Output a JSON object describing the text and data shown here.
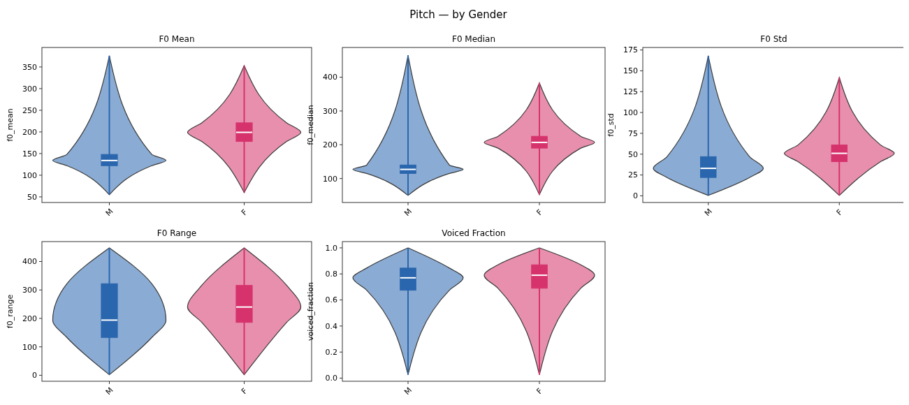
{
  "chart_data": [
    {
      "type": "box",
      "title": "F0 Mean",
      "ylabel": "f0_mean",
      "annotations": [
        "Pitch — by Gender"
      ],
      "categories": [
        "M",
        "F"
      ],
      "colors": [
        "#2a66ae",
        "#d6336c"
      ],
      "ylim": [
        37,
        395
      ],
      "yticks": [
        50,
        100,
        150,
        200,
        250,
        300,
        350
      ],
      "boxes": [
        {
          "low": 55,
          "q1": 122,
          "median": 134,
          "q3": 148,
          "high": 376
        },
        {
          "low": 60,
          "q1": 178,
          "median": 199,
          "q3": 221,
          "high": 353
        }
      ]
    },
    {
      "type": "box",
      "title": "F0 Median",
      "ylabel": "f0_median",
      "categories": [
        "M",
        "F"
      ],
      "colors": [
        "#2a66ae",
        "#d6336c"
      ],
      "ylim": [
        29,
        488
      ],
      "yticks": [
        100,
        200,
        300,
        400
      ],
      "boxes": [
        {
          "low": 50,
          "q1": 115,
          "median": 127,
          "q3": 140,
          "high": 465
        },
        {
          "low": 52,
          "q1": 190,
          "median": 207,
          "q3": 225,
          "high": 383
        }
      ]
    },
    {
      "type": "box",
      "title": "F0 Std",
      "ylabel": "f0_std",
      "categories": [
        "M",
        "F"
      ],
      "colors": [
        "#2a66ae",
        "#d6336c"
      ],
      "ylim": [
        -8,
        178
      ],
      "yticks": [
        0,
        25,
        50,
        75,
        100,
        125,
        150,
        175
      ],
      "boxes": [
        {
          "low": 0.5,
          "q1": 22,
          "median": 33,
          "q3": 47,
          "high": 168
        },
        {
          "low": 0.5,
          "q1": 41,
          "median": 51,
          "q3": 61,
          "high": 142
        }
      ]
    },
    {
      "type": "box",
      "title": "F0 Range",
      "ylabel": "f0_range",
      "categories": [
        "M",
        "F"
      ],
      "colors": [
        "#2a66ae",
        "#d6336c"
      ],
      "ylim": [
        -21,
        470
      ],
      "yticks": [
        0,
        100,
        200,
        300,
        400
      ],
      "boxes": [
        {
          "low": 2,
          "q1": 133,
          "median": 194,
          "q3": 322,
          "high": 448
        },
        {
          "low": 2,
          "q1": 186,
          "median": 240,
          "q3": 316,
          "high": 448
        }
      ]
    },
    {
      "type": "box",
      "title": "Voiced Fraction",
      "ylabel": "voiced_fraction",
      "categories": [
        "M",
        "F"
      ],
      "colors": [
        "#2a66ae",
        "#d6336c"
      ],
      "ylim": [
        -0.024,
        1.048
      ],
      "yticks": [
        {
          "value": 0,
          "label": "0.0"
        },
        0.2,
        0.4,
        0.6,
        0.8,
        {
          "value": 1,
          "label": "1.0"
        }
      ],
      "boxes": [
        {
          "low": 0.025,
          "q1": 0.675,
          "median": 0.77,
          "q3": 0.845,
          "high": 1.0
        },
        {
          "low": 0.025,
          "q1": 0.69,
          "median": 0.79,
          "q3": 0.87,
          "high": 1.0
        }
      ]
    }
  ]
}
